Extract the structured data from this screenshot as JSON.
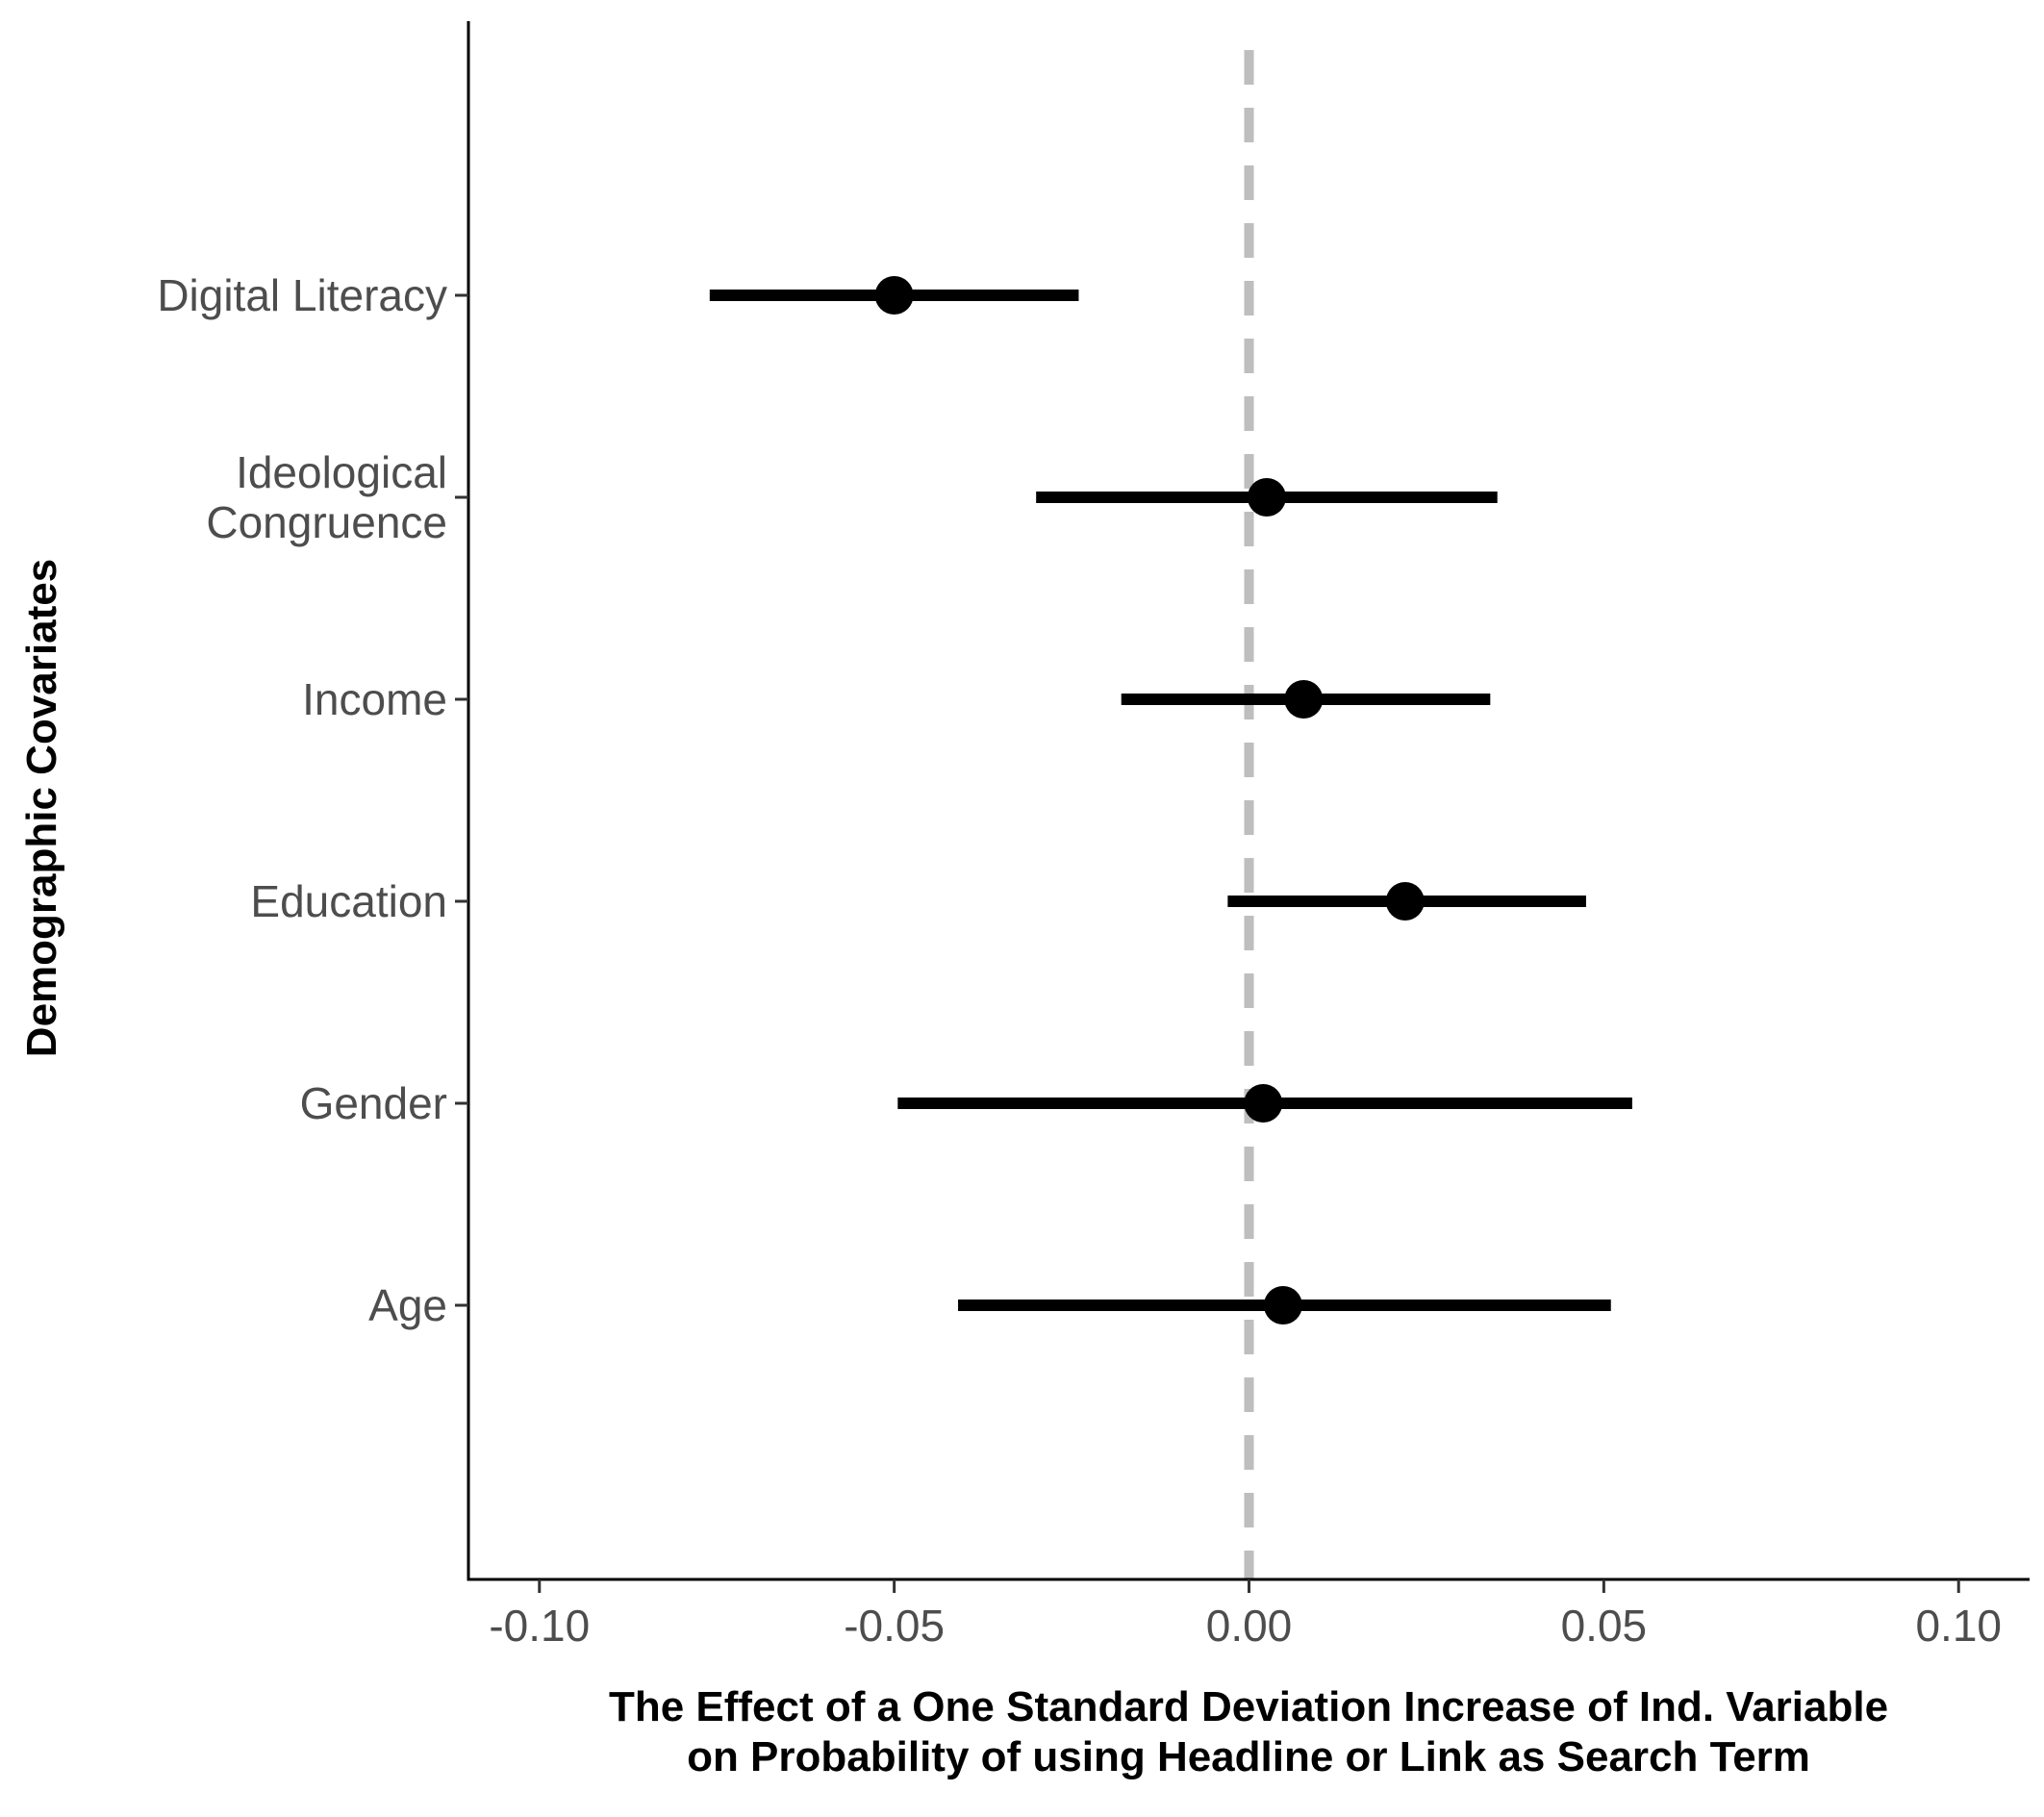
{
  "chart_data": {
    "type": "forest",
    "xlabel": [
      "The Effect of a One Standard Deviation Increase of Ind. Variable",
      "on Probability of using Headline or Link as Search Term"
    ],
    "ylabel": "Demographic Covariates",
    "xlim": [
      -0.11,
      0.11
    ],
    "x_ticks": [
      {
        "value": -0.1,
        "label": "-0.10"
      },
      {
        "value": -0.05,
        "label": "-0.05"
      },
      {
        "value": 0.0,
        "label": "0.00"
      },
      {
        "value": 0.05,
        "label": "0.05"
      },
      {
        "value": 0.1,
        "label": "0.10"
      }
    ],
    "reference_line": {
      "x": 0,
      "style": "dashed",
      "color": "#bebebe"
    },
    "grid": false,
    "point_color": "#000000",
    "categories": [
      {
        "label": [
          "Digital Literacy"
        ],
        "estimate": -0.05,
        "lower": -0.076,
        "upper": -0.024
      },
      {
        "label": [
          "Ideological",
          "Congruence"
        ],
        "estimate": 0.0025,
        "lower": -0.03,
        "upper": 0.035
      },
      {
        "label": [
          "Income"
        ],
        "estimate": 0.0077,
        "lower": -0.018,
        "upper": 0.034
      },
      {
        "label": [
          "Education"
        ],
        "estimate": 0.022,
        "lower": -0.003,
        "upper": 0.0475
      },
      {
        "label": [
          "Gender"
        ],
        "estimate": 0.002,
        "lower": -0.0495,
        "upper": 0.054
      },
      {
        "label": [
          "Age"
        ],
        "estimate": 0.0048,
        "lower": -0.041,
        "upper": 0.051
      }
    ]
  }
}
